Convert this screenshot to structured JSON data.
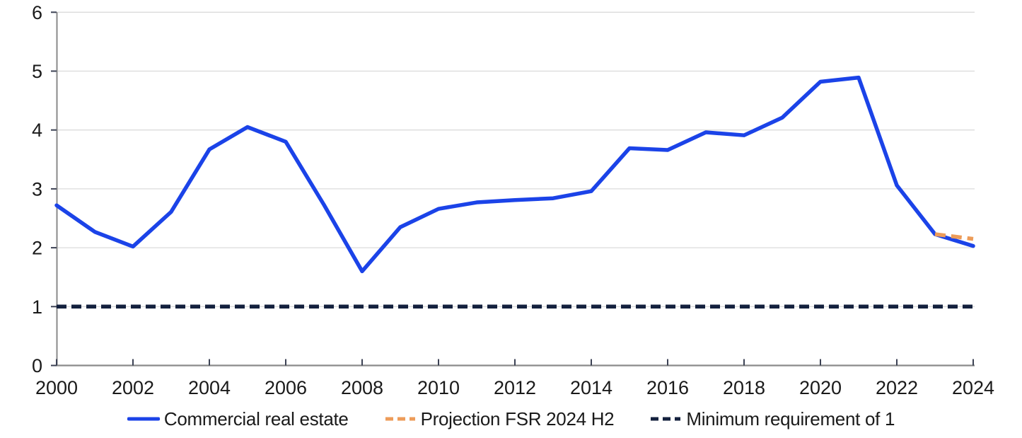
{
  "chart_data": {
    "type": "line",
    "title": "",
    "xlabel": "",
    "ylabel": "",
    "xlim": [
      2000,
      2024
    ],
    "ylim": [
      0,
      6
    ],
    "grid": true,
    "legend_position": "bottom",
    "yticks": [
      0,
      1,
      2,
      3,
      4,
      5,
      6
    ],
    "xticks": [
      2000,
      2002,
      2004,
      2006,
      2008,
      2010,
      2012,
      2014,
      2016,
      2018,
      2020,
      2022,
      2024
    ],
    "xtick_labels": [
      "2000",
      "2002",
      "2004",
      "2006",
      "2008",
      "2010",
      "2012",
      "2014",
      "2016",
      "2018",
      "2020",
      "2022",
      "2024"
    ],
    "ytick_labels": [
      "0",
      "1",
      "2",
      "3",
      "4",
      "5",
      "6"
    ],
    "series": [
      {
        "name": "Commercial real estate",
        "color": "#1b43e8",
        "line_style": "solid",
        "x": [
          2000,
          2001,
          2002,
          2003,
          2004,
          2005,
          2006,
          2007,
          2008,
          2009,
          2010,
          2011,
          2012,
          2013,
          2014,
          2015,
          2016,
          2017,
          2018,
          2019,
          2020,
          2021,
          2022,
          2023,
          2024
        ],
        "values": [
          2.72,
          2.27,
          2.02,
          2.61,
          3.67,
          4.05,
          3.8,
          2.73,
          1.6,
          2.35,
          2.66,
          2.77,
          2.81,
          2.84,
          2.96,
          3.69,
          3.66,
          3.96,
          3.91,
          4.21,
          4.82,
          4.89,
          3.06,
          2.23,
          2.03
        ]
      },
      {
        "name": "Projection FSR 2024 H2",
        "color": "#ed9c59",
        "line_style": "dashed",
        "x": [
          2023,
          2024
        ],
        "values": [
          2.23,
          2.15
        ]
      },
      {
        "name": "Minimum requirement of 1",
        "color": "#14213e",
        "line_style": "dashed",
        "x": [
          2000,
          2024
        ],
        "values": [
          1,
          1
        ]
      }
    ]
  },
  "colors": {
    "background": "#ffffff",
    "gridline": "#dbdbdb",
    "axis_line": "#8a8a8a",
    "tick_mark": "#3c4254",
    "text": "#1a1a1a"
  }
}
